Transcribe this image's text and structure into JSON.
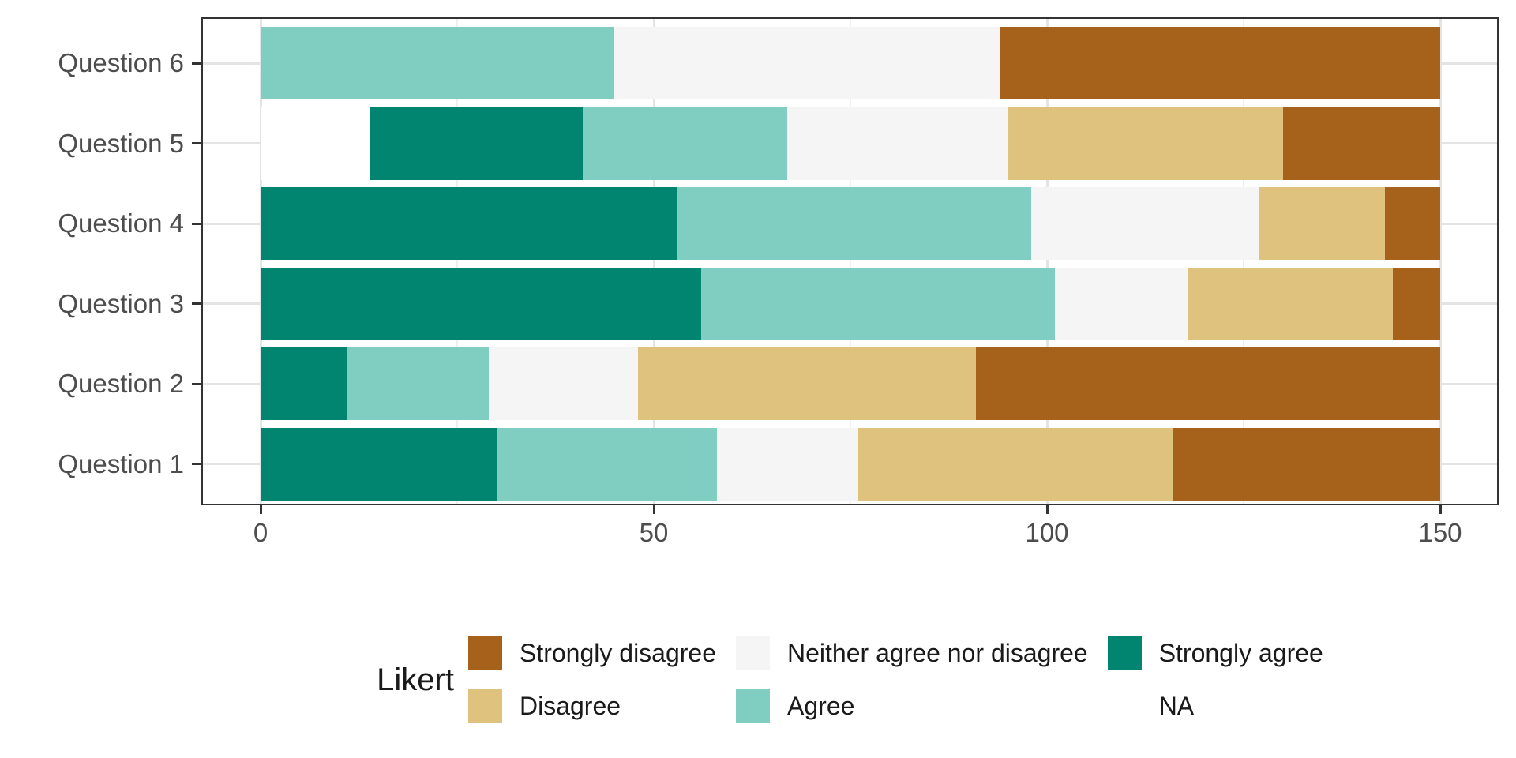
{
  "chart_data": {
    "type": "bar",
    "orientation": "horizontal",
    "stacked": true,
    "title": "",
    "xlabel": "",
    "ylabel": "",
    "categories": [
      "Question 1",
      "Question 2",
      "Question 3",
      "Question 4",
      "Question 5",
      "Question 6"
    ],
    "category_display_order_top_to_bottom": [
      "Question 6",
      "Question 5",
      "Question 4",
      "Question 3",
      "Question 2",
      "Question 1"
    ],
    "row_total": 150,
    "xlim": [
      0,
      150
    ],
    "x_major_ticks": [
      0,
      50,
      100,
      150
    ],
    "x_tick_labels": [
      "0",
      "50",
      "100",
      "150"
    ],
    "x_minor_gridlines": [
      25,
      75,
      125
    ],
    "grid": true,
    "legend_position": "bottom",
    "stack_order_left_to_right": [
      "NA",
      "Strongly agree",
      "Agree",
      "Neither agree nor disagree",
      "Disagree",
      "Strongly disagree"
    ],
    "series": [
      {
        "name": "NA",
        "color": "#FFFFFF",
        "values": [
          0,
          0,
          0,
          0,
          14,
          0
        ]
      },
      {
        "name": "Strongly agree",
        "color": "#018571",
        "values": [
          30,
          11,
          56,
          53,
          27,
          0
        ]
      },
      {
        "name": "Agree",
        "color": "#80CDC1",
        "values": [
          28,
          18,
          45,
          45,
          26,
          45
        ]
      },
      {
        "name": "Neither agree nor disagree",
        "color": "#F5F5F5",
        "values": [
          18,
          19,
          17,
          29,
          28,
          49
        ]
      },
      {
        "name": "Disagree",
        "color": "#DFC27D",
        "values": [
          40,
          43,
          26,
          16,
          35,
          0
        ]
      },
      {
        "name": "Strongly disagree",
        "color": "#A6611A",
        "values": [
          34,
          59,
          6,
          7,
          20,
          56
        ]
      }
    ]
  },
  "legend": {
    "title": "Likert",
    "columns": [
      {
        "items": [
          {
            "label": "Strongly disagree",
            "color": "#A6611A"
          },
          {
            "label": "Disagree",
            "color": "#DFC27D"
          }
        ]
      },
      {
        "items": [
          {
            "label": "Neither agree nor disagree",
            "color": "#F5F5F5"
          },
          {
            "label": "Agree",
            "color": "#80CDC1"
          }
        ]
      },
      {
        "items": [
          {
            "label": "Strongly agree",
            "color": "#018571"
          },
          {
            "label": "NA",
            "color": "#FFFFFF"
          }
        ]
      }
    ]
  },
  "style": {
    "background": "#FFFFFF",
    "panel_border": "#333333",
    "grid_major": "#E4E4E4",
    "grid_minor": "#EFEFEF",
    "tick_color": "#333333",
    "axis_text_color": "#4D4D4D",
    "legend_text_color": "#1A1A1A"
  }
}
